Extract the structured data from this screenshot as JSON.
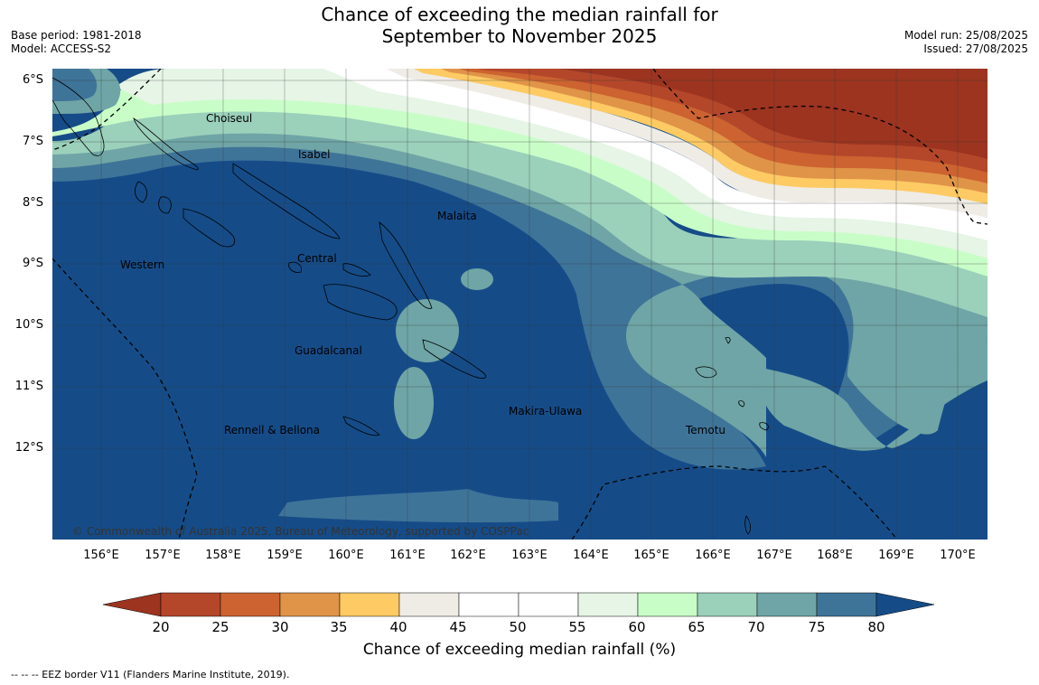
{
  "header": {
    "title_line1": "Chance of exceeding the median rainfall for",
    "title_line2": "September to November 2025",
    "base_period": "Base period: 1981-2018",
    "model": "Model: ACCESS-S2",
    "model_run": "Model run: 25/08/2025",
    "issued": "Issued: 27/08/2025"
  },
  "map": {
    "lat_labels": [
      "6°S",
      "7°S",
      "8°S",
      "9°S",
      "10°S",
      "11°S",
      "12°S"
    ],
    "lon_labels": [
      "156°E",
      "157°E",
      "158°E",
      "159°E",
      "160°E",
      "161°E",
      "162°E",
      "163°E",
      "164°E",
      "165°E",
      "166°E",
      "167°E",
      "168°E",
      "169°E",
      "170°E"
    ],
    "places": [
      {
        "name": "Choiseul"
      },
      {
        "name": "Isabel"
      },
      {
        "name": "Malaita"
      },
      {
        "name": "Western"
      },
      {
        "name": "Central"
      },
      {
        "name": "Guadalcanal"
      },
      {
        "name": "Makira-Ulawa"
      },
      {
        "name": "Temotu"
      },
      {
        "name": "Rennell & Bellona"
      }
    ],
    "copyright": "© Commonwealth of Australia 2025, Bureau of Meteorology, supported by COSPPac"
  },
  "colorbar": {
    "ticks": [
      "20",
      "25",
      "30",
      "35",
      "40",
      "45",
      "50",
      "55",
      "60",
      "65",
      "70",
      "75",
      "80"
    ],
    "colors": [
      "#9c3420",
      "#b4472a",
      "#cc6330",
      "#e09448",
      "#fdca64",
      "#efece6",
      "#ffffff",
      "#ffffff",
      "#e6f5e6",
      "#c9fdc8",
      "#9bd0bb",
      "#6fa5a6",
      "#3f7499",
      "#154c88"
    ],
    "label": "Chance of exceeding median rainfall (%)"
  },
  "footnote": "--  --  -- EEZ border V11 (Flanders Marine Institute, 2019)."
}
